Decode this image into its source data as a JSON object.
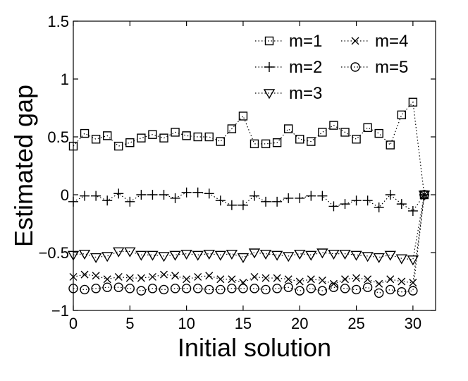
{
  "chart_data": {
    "type": "line",
    "xlabel": "Initial solution",
    "ylabel": "Estimated gap",
    "xlim": [
      0,
      32
    ],
    "ylim": [
      -1,
      1.5
    ],
    "xticks": [
      0,
      5,
      10,
      15,
      20,
      25,
      30
    ],
    "yticks": [
      -1,
      -0.5,
      0,
      0.5,
      1,
      1.5
    ],
    "ytick_labels": [
      "−1",
      "−0.5",
      "0",
      "0.5",
      "1",
      "1.5"
    ],
    "grid": false,
    "legend_position": "top-right",
    "line_style": "dotted",
    "x": [
      0,
      1,
      2,
      3,
      4,
      5,
      6,
      7,
      8,
      9,
      10,
      11,
      12,
      13,
      14,
      15,
      16,
      17,
      18,
      19,
      20,
      21,
      22,
      23,
      24,
      25,
      26,
      27,
      28,
      29,
      30,
      31
    ],
    "series": [
      {
        "name": "m=1",
        "marker": "square",
        "values": [
          0.42,
          0.53,
          0.48,
          0.51,
          0.42,
          0.45,
          0.49,
          0.52,
          0.49,
          0.54,
          0.51,
          0.5,
          0.5,
          0.46,
          0.57,
          0.68,
          0.44,
          0.44,
          0.45,
          0.57,
          0.48,
          0.46,
          0.54,
          0.6,
          0.54,
          0.48,
          0.58,
          0.53,
          0.43,
          0.69,
          0.8,
          0.0
        ]
      },
      {
        "name": "m=2",
        "marker": "plus",
        "values": [
          -0.06,
          -0.01,
          -0.01,
          -0.05,
          0.01,
          -0.06,
          0.0,
          0.0,
          0.0,
          -0.03,
          0.02,
          0.02,
          0.01,
          -0.05,
          -0.09,
          -0.09,
          -0.01,
          -0.06,
          -0.06,
          -0.03,
          -0.03,
          -0.01,
          -0.01,
          -0.1,
          -0.08,
          -0.05,
          -0.05,
          -0.11,
          0.0,
          -0.08,
          -0.14,
          0.0
        ]
      },
      {
        "name": "m=3",
        "marker": "triangle-down",
        "values": [
          -0.52,
          -0.51,
          -0.54,
          -0.53,
          -0.49,
          -0.49,
          -0.52,
          -0.52,
          -0.53,
          -0.52,
          -0.51,
          -0.52,
          -0.51,
          -0.52,
          -0.51,
          -0.54,
          -0.5,
          -0.51,
          -0.52,
          -0.53,
          -0.51,
          -0.52,
          -0.5,
          -0.51,
          -0.51,
          -0.52,
          -0.53,
          -0.54,
          -0.52,
          -0.55,
          -0.56,
          0.0
        ]
      },
      {
        "name": "m=4",
        "marker": "x",
        "values": [
          -0.71,
          -0.69,
          -0.7,
          -0.73,
          -0.71,
          -0.72,
          -0.72,
          -0.71,
          -0.69,
          -0.7,
          -0.73,
          -0.71,
          -0.7,
          -0.73,
          -0.73,
          -0.76,
          -0.71,
          -0.72,
          -0.72,
          -0.73,
          -0.75,
          -0.73,
          -0.74,
          -0.77,
          -0.73,
          -0.72,
          -0.73,
          -0.77,
          -0.73,
          -0.75,
          -0.76,
          0.0
        ]
      },
      {
        "name": "m=5",
        "marker": "circle",
        "values": [
          -0.81,
          -0.82,
          -0.81,
          -0.8,
          -0.8,
          -0.81,
          -0.83,
          -0.81,
          -0.82,
          -0.81,
          -0.81,
          -0.81,
          -0.82,
          -0.82,
          -0.81,
          -0.81,
          -0.81,
          -0.82,
          -0.81,
          -0.8,
          -0.83,
          -0.81,
          -0.83,
          -0.8,
          -0.81,
          -0.82,
          -0.8,
          -0.85,
          -0.82,
          -0.84,
          -0.83,
          0.0
        ]
      }
    ]
  }
}
